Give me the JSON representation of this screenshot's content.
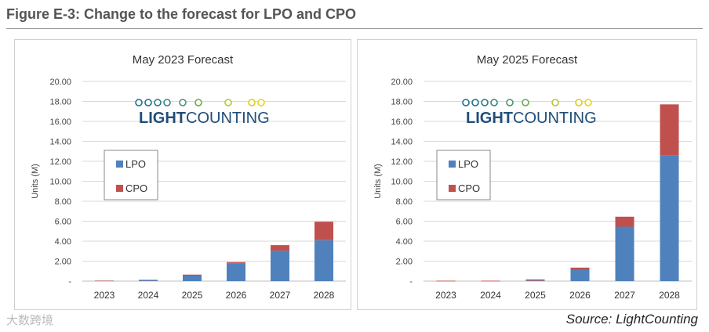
{
  "figure_title": "Figure E-3: Change to the forecast for LPO and CPO",
  "source": "Source: LightCounting",
  "watermark": "大数跨境",
  "logo_text": "LIGHTCOUNTING",
  "colors": {
    "LPO": "#4f81bd",
    "CPO": "#c0504d"
  },
  "chart_data": [
    {
      "type": "bar",
      "stacked": true,
      "title": "May 2023 Forecast",
      "ylabel": "Units (M)",
      "xlabel": "",
      "ylim": [
        0,
        20
      ],
      "yticks": [
        "-",
        "2.00",
        "4.00",
        "6.00",
        "8.00",
        "10.00",
        "12.00",
        "14.00",
        "16.00",
        "18.00",
        "20.00"
      ],
      "categories": [
        "2023",
        "2024",
        "2025",
        "2026",
        "2027",
        "2028"
      ],
      "series": [
        {
          "name": "LPO",
          "values": [
            0.03,
            0.08,
            0.55,
            1.75,
            3.05,
            4.1
          ]
        },
        {
          "name": "CPO",
          "values": [
            0.02,
            0.05,
            0.1,
            0.15,
            0.55,
            1.85
          ]
        }
      ],
      "legend": "left"
    },
    {
      "type": "bar",
      "stacked": true,
      "title": "May 2025 Forecast",
      "ylabel": "Units (M)",
      "xlabel": "",
      "ylim": [
        0,
        20
      ],
      "yticks": [
        "-",
        "2.00",
        "4.00",
        "6.00",
        "8.00",
        "10.00",
        "12.00",
        "14.00",
        "16.00",
        "18.00",
        "20.00"
      ],
      "categories": [
        "2023",
        "2024",
        "2025",
        "2026",
        "2027",
        "2028"
      ],
      "series": [
        {
          "name": "LPO",
          "values": [
            0.01,
            0.01,
            0.05,
            1.1,
            5.45,
            12.6
          ]
        },
        {
          "name": "CPO",
          "values": [
            0.03,
            0.03,
            0.12,
            0.25,
            1.0,
            5.1
          ]
        }
      ],
      "legend": "left"
    }
  ]
}
